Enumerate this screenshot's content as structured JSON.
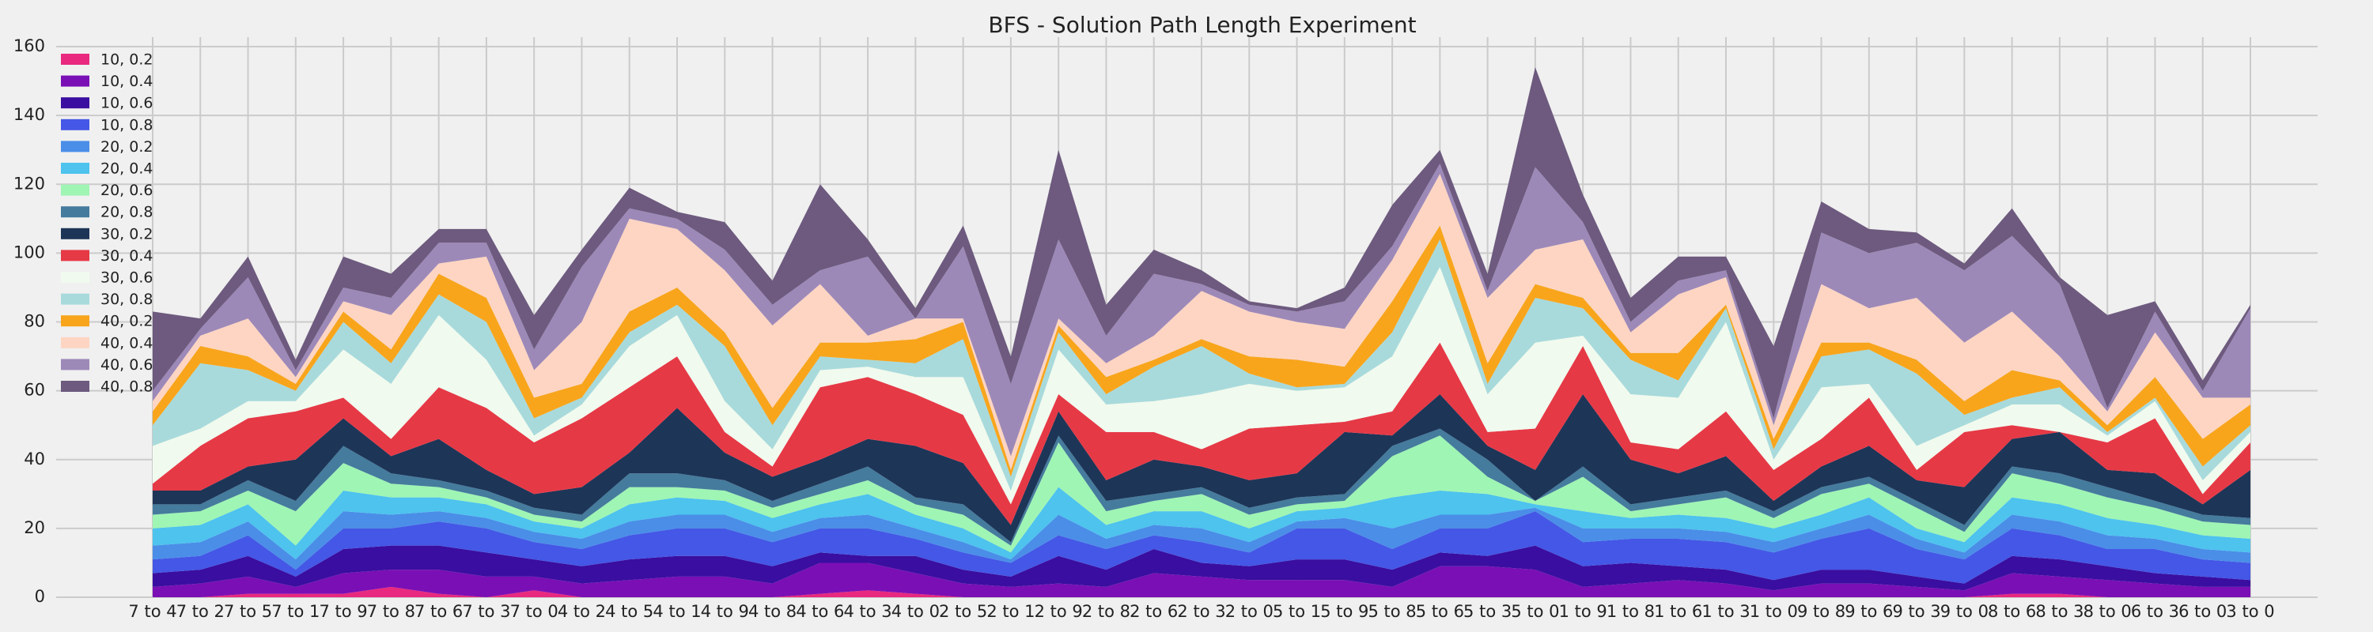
{
  "chart_data": {
    "type": "area",
    "stacked": true,
    "title": "BFS - Solution Path Length Experiment",
    "categories": [
      "7 to 4",
      "7 to 2",
      "7 to 5",
      "7 to 1",
      "7 to 9",
      "7 to 8",
      "7 to 6",
      "7 to 3",
      "7 to 0",
      "4 to 2",
      "4 to 5",
      "4 to 1",
      "4 to 9",
      "4 to 8",
      "4 to 6",
      "4 to 3",
      "4 to 0",
      "2 to 5",
      "2 to 1",
      "2 to 9",
      "2 to 8",
      "2 to 6",
      "2 to 3",
      "2 to 0",
      "5 to 1",
      "5 to 9",
      "5 to 8",
      "5 to 6",
      "5 to 3",
      "5 to 0",
      "1 to 9",
      "1 to 8",
      "1 to 6",
      "1 to 3",
      "1 to 0",
      "9 to 8",
      "9 to 6",
      "9 to 3",
      "9 to 0",
      "8 to 6",
      "8 to 3",
      "8 to 0",
      "6 to 3",
      "6 to 0",
      "3 to 0"
    ],
    "ylim": [
      0,
      160
    ],
    "yticks": [
      0,
      20,
      40,
      60,
      80,
      100,
      120,
      140,
      160
    ],
    "grid": true,
    "legend": "upper left",
    "series": [
      {
        "name": "10, 0.2",
        "color": "#e8297f",
        "values": [
          0,
          0,
          1,
          1,
          1,
          3,
          1,
          0,
          2,
          0,
          0,
          0,
          0,
          0,
          1,
          2,
          1,
          0,
          0,
          0,
          0,
          0,
          0,
          0,
          0,
          0,
          0,
          0,
          0,
          0,
          0,
          0,
          0,
          0,
          0,
          0,
          0,
          0,
          0,
          1,
          1,
          0,
          0,
          0,
          0
        ]
      },
      {
        "name": "10, 0.4",
        "color": "#7a0fb5",
        "values": [
          3,
          4,
          5,
          2,
          6,
          5,
          7,
          6,
          4,
          4,
          5,
          6,
          6,
          4,
          9,
          8,
          6,
          4,
          3,
          4,
          3,
          7,
          6,
          5,
          5,
          5,
          3,
          9,
          9,
          8,
          3,
          4,
          5,
          4,
          2,
          4,
          4,
          3,
          2,
          6,
          5,
          5,
          4,
          3,
          3
        ]
      },
      {
        "name": "10, 0.6",
        "color": "#3a0ea0",
        "values": [
          4,
          4,
          6,
          3,
          7,
          7,
          7,
          7,
          5,
          5,
          6,
          6,
          6,
          5,
          3,
          2,
          5,
          4,
          3,
          8,
          5,
          7,
          4,
          4,
          6,
          6,
          5,
          4,
          3,
          7,
          6,
          6,
          4,
          4,
          3,
          4,
          4,
          3,
          2,
          5,
          5,
          4,
          3,
          3,
          2
        ]
      },
      {
        "name": "10, 0.8",
        "color": "#4457e6",
        "values": [
          4,
          4,
          6,
          2,
          6,
          5,
          7,
          7,
          5,
          5,
          7,
          8,
          8,
          7,
          7,
          8,
          5,
          5,
          4,
          6,
          6,
          4,
          6,
          4,
          9,
          9,
          6,
          7,
          8,
          10,
          7,
          7,
          8,
          8,
          8,
          9,
          12,
          8,
          7,
          8,
          7,
          5,
          7,
          5,
          5
        ]
      },
      {
        "name": "20, 0.2",
        "color": "#4a8ee8",
        "values": [
          4,
          4,
          4,
          3,
          5,
          4,
          3,
          3,
          3,
          3,
          4,
          4,
          4,
          3,
          3,
          4,
          3,
          3,
          1,
          6,
          3,
          3,
          4,
          3,
          2,
          3,
          6,
          4,
          4,
          1,
          4,
          3,
          3,
          3,
          3,
          3,
          4,
          3,
          2,
          4,
          4,
          4,
          3,
          3,
          3
        ]
      },
      {
        "name": "20, 0.4",
        "color": "#4dc3ee",
        "values": [
          5,
          5,
          5,
          4,
          6,
          5,
          4,
          4,
          3,
          3,
          5,
          5,
          4,
          4,
          4,
          6,
          4,
          4,
          2,
          8,
          4,
          4,
          5,
          4,
          3,
          3,
          9,
          7,
          6,
          1,
          5,
          3,
          4,
          4,
          4,
          4,
          5,
          3,
          3,
          5,
          5,
          5,
          4,
          4,
          4
        ]
      },
      {
        "name": "20, 0.6",
        "color": "#9ff5b4",
        "values": [
          4,
          4,
          4,
          10,
          8,
          4,
          3,
          2,
          2,
          2,
          5,
          3,
          3,
          3,
          3,
          4,
          3,
          4,
          2,
          13,
          4,
          3,
          5,
          4,
          2,
          2,
          12,
          16,
          5,
          1,
          10,
          2,
          3,
          6,
          3,
          6,
          4,
          6,
          3,
          7,
          6,
          6,
          5,
          4,
          4
        ]
      },
      {
        "name": "20, 0.8",
        "color": "#457b9d",
        "values": [
          3,
          2,
          3,
          3,
          5,
          3,
          2,
          2,
          2,
          2,
          4,
          4,
          3,
          2,
          3,
          4,
          2,
          3,
          1,
          2,
          3,
          2,
          2,
          2,
          2,
          2,
          3,
          2,
          5,
          0,
          3,
          2,
          2,
          2,
          2,
          2,
          2,
          2,
          2,
          2,
          3,
          3,
          2,
          2,
          2
        ]
      },
      {
        "name": "30, 0.2",
        "color": "#1d3557",
        "values": [
          4,
          4,
          4,
          12,
          8,
          5,
          12,
          6,
          4,
          8,
          6,
          19,
          8,
          7,
          7,
          8,
          15,
          12,
          5,
          7,
          6,
          10,
          6,
          8,
          7,
          18,
          3,
          10,
          4,
          9,
          21,
          13,
          7,
          10,
          3,
          6,
          9,
          6,
          11,
          8,
          12,
          5,
          8,
          3,
          14
        ]
      },
      {
        "name": "30, 0.4",
        "color": "#e63946",
        "values": [
          2,
          13,
          14,
          14,
          6,
          5,
          15,
          18,
          15,
          20,
          19,
          15,
          6,
          3,
          21,
          18,
          15,
          14,
          6,
          5,
          14,
          8,
          5,
          15,
          14,
          3,
          7,
          15,
          4,
          12,
          14,
          5,
          7,
          13,
          9,
          8,
          14,
          3,
          16,
          4,
          0,
          8,
          16,
          3,
          8
        ]
      },
      {
        "name": "30, 0.6",
        "color": "#f1faee",
        "values": [
          11,
          5,
          5,
          3,
          14,
          16,
          21,
          14,
          2,
          4,
          12,
          12,
          9,
          5,
          5,
          3,
          5,
          11,
          4,
          13,
          8,
          9,
          16,
          13,
          10,
          10,
          16,
          22,
          11,
          25,
          3,
          14,
          15,
          26,
          3,
          15,
          4,
          7,
          2,
          6,
          8,
          2,
          5,
          4,
          3
        ]
      },
      {
        "name": "30, 0.8",
        "color": "#a8dadc",
        "values": [
          6,
          19,
          9,
          3,
          8,
          6,
          6,
          11,
          5,
          2,
          4,
          3,
          16,
          7,
          4,
          2,
          4,
          11,
          4,
          5,
          3,
          10,
          14,
          3,
          1,
          1,
          7,
          8,
          3,
          13,
          8,
          10,
          5,
          4,
          3,
          9,
          10,
          21,
          3,
          2,
          5,
          1,
          1,
          4,
          2
        ]
      },
      {
        "name": "40, 0.2",
        "color": "#f8a51c",
        "values": [
          4,
          5,
          4,
          2,
          3,
          4,
          6,
          7,
          6,
          4,
          6,
          5,
          4,
          5,
          4,
          5,
          7,
          5,
          2,
          2,
          5,
          2,
          2,
          5,
          8,
          5,
          9,
          4,
          6,
          4,
          3,
          2,
          8,
          1,
          3,
          4,
          2,
          4,
          4,
          8,
          2,
          2,
          6,
          8,
          6
        ]
      },
      {
        "name": "40, 0.4",
        "color": "#fdd5c2",
        "values": [
          3,
          3,
          11,
          2,
          3,
          10,
          3,
          12,
          8,
          18,
          27,
          17,
          18,
          24,
          17,
          2,
          6,
          1,
          4,
          2,
          4,
          7,
          14,
          13,
          11,
          11,
          12,
          15,
          19,
          10,
          17,
          6,
          17,
          8,
          4,
          17,
          10,
          18,
          17,
          17,
          7,
          4,
          13,
          12,
          2
        ]
      },
      {
        "name": "40, 0.6",
        "color": "#9d89b8",
        "values": [
          3,
          2,
          12,
          2,
          4,
          5,
          6,
          4,
          6,
          16,
          3,
          3,
          6,
          6,
          4,
          23,
          0,
          21,
          21,
          23,
          8,
          18,
          2,
          2,
          3,
          8,
          4,
          3,
          2,
          24,
          5,
          3,
          4,
          2,
          2,
          15,
          16,
          16,
          21,
          22,
          21,
          1,
          6,
          2,
          26
        ]
      },
      {
        "name": "40, 0.8",
        "color": "#6d5a7e",
        "values": [
          23,
          3,
          6,
          3,
          9,
          7,
          4,
          4,
          10,
          5,
          6,
          2,
          8,
          7,
          25,
          5,
          3,
          6,
          8,
          26,
          9,
          7,
          4,
          1,
          1,
          4,
          12,
          4,
          5,
          29,
          8,
          7,
          7,
          4,
          21,
          9,
          7,
          3,
          2,
          8,
          2,
          27,
          3,
          3,
          1
        ]
      }
    ]
  }
}
